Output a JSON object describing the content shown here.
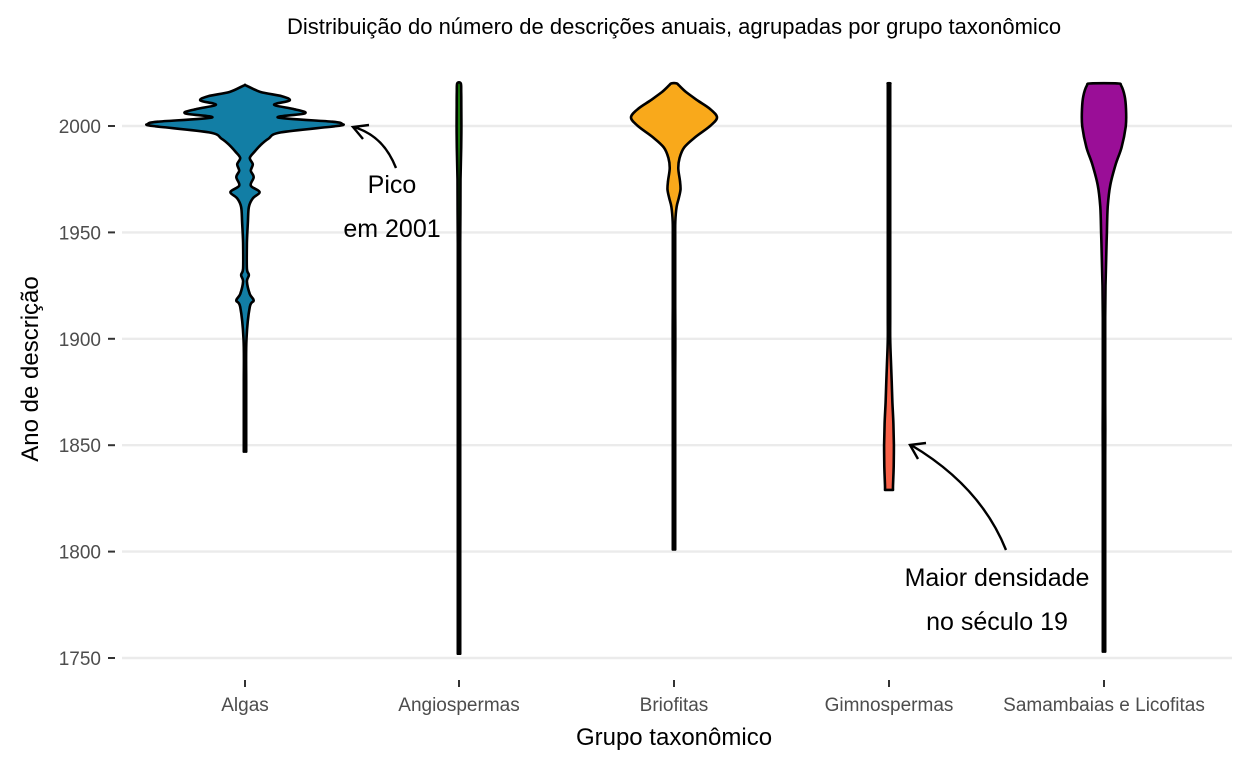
{
  "chart_data": {
    "type": "violin",
    "title": "Distribuição do número de descrições anuais, agrupadas por grupo taxonômico",
    "xlabel": "Grupo taxonômico",
    "ylabel": "Ano de descrição",
    "ylim": [
      1738,
      2028
    ],
    "yticks": [
      1750,
      1800,
      1850,
      1900,
      1950,
      2000
    ],
    "grid": "horizontal major",
    "legend": "none",
    "categories": [
      "Algas",
      "Angiospermas",
      "Briofitas",
      "Gimnospermas",
      "Samambaias e Licofitas"
    ],
    "series": [
      {
        "category": "Algas",
        "color": "#127ea5",
        "profile": [
          [
            1847,
            0.01
          ],
          [
            1860,
            0.01
          ],
          [
            1880,
            0.01
          ],
          [
            1900,
            0.015
          ],
          [
            1915,
            0.05
          ],
          [
            1918,
            0.09
          ],
          [
            1921,
            0.05
          ],
          [
            1927,
            0.02
          ],
          [
            1930,
            0.04
          ],
          [
            1933,
            0.02
          ],
          [
            1945,
            0.02
          ],
          [
            1955,
            0.03
          ],
          [
            1962,
            0.04
          ],
          [
            1966,
            0.08
          ],
          [
            1969,
            0.15
          ],
          [
            1972,
            0.06
          ],
          [
            1976,
            0.09
          ],
          [
            1979,
            0.06
          ],
          [
            1982,
            0.08
          ],
          [
            1985,
            0.05
          ],
          [
            1988,
            0.1
          ],
          [
            1991,
            0.16
          ],
          [
            1994,
            0.24
          ],
          [
            1997,
            0.37
          ],
          [
            2000,
            0.95
          ],
          [
            2001,
            1.0
          ],
          [
            2002,
            0.9
          ],
          [
            2004,
            0.34
          ],
          [
            2006,
            0.62
          ],
          [
            2008,
            0.5
          ],
          [
            2010,
            0.3
          ],
          [
            2012,
            0.46
          ],
          [
            2014,
            0.38
          ],
          [
            2016,
            0.16
          ],
          [
            2019,
            0.01
          ]
        ]
      },
      {
        "category": "Angiospermas",
        "color": "#1b7b0d",
        "profile": [
          [
            1752,
            0.01
          ],
          [
            1790,
            0.015
          ],
          [
            1806,
            0.02
          ],
          [
            1813,
            0.05
          ],
          [
            1822,
            0.08
          ],
          [
            1832,
            0.1
          ],
          [
            1843,
            0.11
          ],
          [
            1854,
            0.09
          ],
          [
            1870,
            0.08
          ],
          [
            1890,
            0.09
          ],
          [
            1903,
            0.11
          ],
          [
            1915,
            0.08
          ],
          [
            1930,
            0.07
          ],
          [
            1945,
            0.11
          ],
          [
            1960,
            0.13
          ],
          [
            1975,
            0.14
          ],
          [
            1990,
            0.2
          ],
          [
            2000,
            0.22
          ],
          [
            2010,
            0.21
          ],
          [
            2016,
            0.2
          ],
          [
            2020,
            0.16
          ]
        ]
      },
      {
        "category": "Briofitas",
        "color": "#f9a91b",
        "profile": [
          [
            1801,
            0.01
          ],
          [
            1815,
            0.015
          ],
          [
            1828,
            0.02
          ],
          [
            1835,
            0.02
          ],
          [
            1842,
            0.02
          ],
          [
            1855,
            0.015
          ],
          [
            1865,
            0.02
          ],
          [
            1872,
            0.02
          ],
          [
            1882,
            0.015
          ],
          [
            1895,
            0.03
          ],
          [
            1905,
            0.03
          ],
          [
            1915,
            0.015
          ],
          [
            1930,
            0.02
          ],
          [
            1948,
            0.02
          ],
          [
            1955,
            0.03
          ],
          [
            1962,
            0.06
          ],
          [
            1966,
            0.11
          ],
          [
            1970,
            0.15
          ],
          [
            1974,
            0.14
          ],
          [
            1980,
            0.1
          ],
          [
            1985,
            0.13
          ],
          [
            1990,
            0.24
          ],
          [
            1995,
            0.51
          ],
          [
            2000,
            0.84
          ],
          [
            2004,
            1.0
          ],
          [
            2008,
            0.84
          ],
          [
            2012,
            0.55
          ],
          [
            2016,
            0.28
          ],
          [
            2019,
            0.12
          ],
          [
            2020,
            0.06
          ]
        ]
      },
      {
        "category": "Gimnospermas",
        "color": "#f86249",
        "profile": [
          [
            1829,
            0.45
          ],
          [
            1831,
            0.45
          ],
          [
            1840,
            0.52
          ],
          [
            1850,
            0.54
          ],
          [
            1860,
            0.49
          ],
          [
            1870,
            0.38
          ],
          [
            1880,
            0.3
          ],
          [
            1890,
            0.21
          ],
          [
            1900,
            0.13
          ],
          [
            1910,
            0.09
          ],
          [
            1925,
            0.04
          ],
          [
            1938,
            0.03
          ],
          [
            1950,
            0.04
          ],
          [
            1962,
            0.05
          ],
          [
            1972,
            0.07
          ],
          [
            1982,
            0.08
          ],
          [
            1990,
            0.09
          ],
          [
            2000,
            0.12
          ],
          [
            2010,
            0.13
          ],
          [
            2019,
            0.13
          ],
          [
            2020,
            0.12
          ]
        ]
      },
      {
        "category": "Samambaias e Licofitas",
        "color": "#9a0e97",
        "profile": [
          [
            1753,
            0.01
          ],
          [
            1790,
            0.01
          ],
          [
            1815,
            0.02
          ],
          [
            1830,
            0.03
          ],
          [
            1845,
            0.04
          ],
          [
            1858,
            0.06
          ],
          [
            1870,
            0.05
          ],
          [
            1880,
            0.03
          ],
          [
            1895,
            0.04
          ],
          [
            1910,
            0.05
          ],
          [
            1925,
            0.07
          ],
          [
            1938,
            0.1
          ],
          [
            1950,
            0.13
          ],
          [
            1962,
            0.17
          ],
          [
            1972,
            0.28
          ],
          [
            1982,
            0.53
          ],
          [
            1990,
            0.8
          ],
          [
            2000,
            0.99
          ],
          [
            2008,
            1.0
          ],
          [
            2014,
            0.94
          ],
          [
            2019,
            0.78
          ],
          [
            2020,
            0.6
          ]
        ]
      }
    ],
    "annotations": [
      {
        "lines": [
          "Pico",
          "em 2001"
        ],
        "points_to": {
          "category": "Algas",
          "y": 2001
        }
      },
      {
        "lines": [
          "Maior densidade",
          "no século 19"
        ],
        "points_to": {
          "category": "Gimnospermas",
          "y": 1850
        }
      }
    ]
  }
}
